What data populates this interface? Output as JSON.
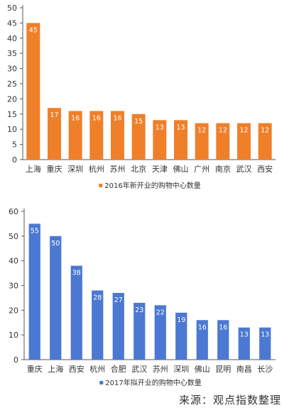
{
  "colors": {
    "orange": "#f07f2a",
    "blue": "#4b78d2",
    "axis": "#555555"
  },
  "chart_data": [
    {
      "type": "bar",
      "categories": [
        "上海",
        "重庆",
        "深圳",
        "杭州",
        "苏州",
        "北京",
        "天津",
        "佛山",
        "广州",
        "南京",
        "武汉",
        "西安"
      ],
      "series": [
        {
          "name": "2016年新开业的购物中心数量",
          "values": [
            45,
            17,
            16,
            16,
            16,
            15,
            13,
            13,
            12,
            12,
            12,
            12
          ]
        }
      ],
      "yticks": [
        0,
        5,
        10,
        15,
        20,
        25,
        30,
        35,
        40,
        45,
        50
      ],
      "ylim": [
        0,
        50
      ],
      "data_labels": true,
      "legend_position": "bottom-center",
      "grid": false
    },
    {
      "type": "bar",
      "categories": [
        "重庆",
        "上海",
        "西安",
        "杭州",
        "合肥",
        "武汉",
        "苏州",
        "深圳",
        "佛山",
        "昆明",
        "南昌",
        "长沙"
      ],
      "series": [
        {
          "name": "2017年拟开业的购物中心数量",
          "values": [
            55,
            50,
            38,
            28,
            27,
            23,
            22,
            19,
            16,
            16,
            13,
            13
          ]
        }
      ],
      "yticks": [
        0,
        10,
        20,
        30,
        40,
        50,
        60
      ],
      "ylim": [
        0,
        60
      ],
      "data_labels": true,
      "legend_position": "bottom-center",
      "grid": false
    }
  ],
  "source_text": "来源：观点指数整理"
}
